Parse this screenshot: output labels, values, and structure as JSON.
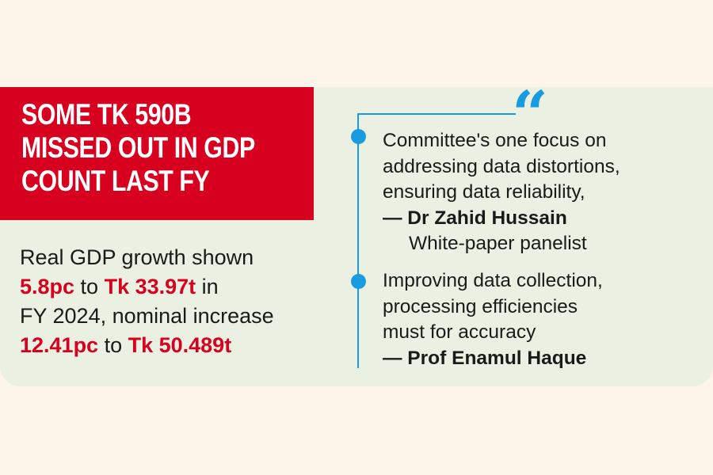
{
  "headline": {
    "lines": [
      "SOME TK 590B",
      "MISSED OUT IN GDP",
      "COUNT LAST FY"
    ]
  },
  "summary": {
    "line1": "Real GDP growth shown",
    "real_growth": "5.8pc",
    "to1": " to ",
    "real_value": "Tk 33.97t",
    "in": " in",
    "line3": "FY 2024, nominal increase",
    "nominal_growth": "12.41pc",
    "to2": " to ",
    "nominal_value": "Tk 50.489t"
  },
  "quote_icon": "left-double-quote-icon",
  "quotes": [
    {
      "lines": [
        "Committee's one focus on",
        "addressing data distortions,",
        "ensuring data reliability,"
      ],
      "attribution": "— Dr Zahid Hussain",
      "role": "White-paper panelist"
    },
    {
      "lines": [
        "Improving data collection,",
        "processing efficiencies",
        "must for accuracy"
      ],
      "attribution": "— Prof Enamul Haque"
    }
  ],
  "colors": {
    "accent_red": "#d8001f",
    "accent_blue": "#1a9be0",
    "panel": "#eaf1e2",
    "background": "#fdf4ea"
  }
}
